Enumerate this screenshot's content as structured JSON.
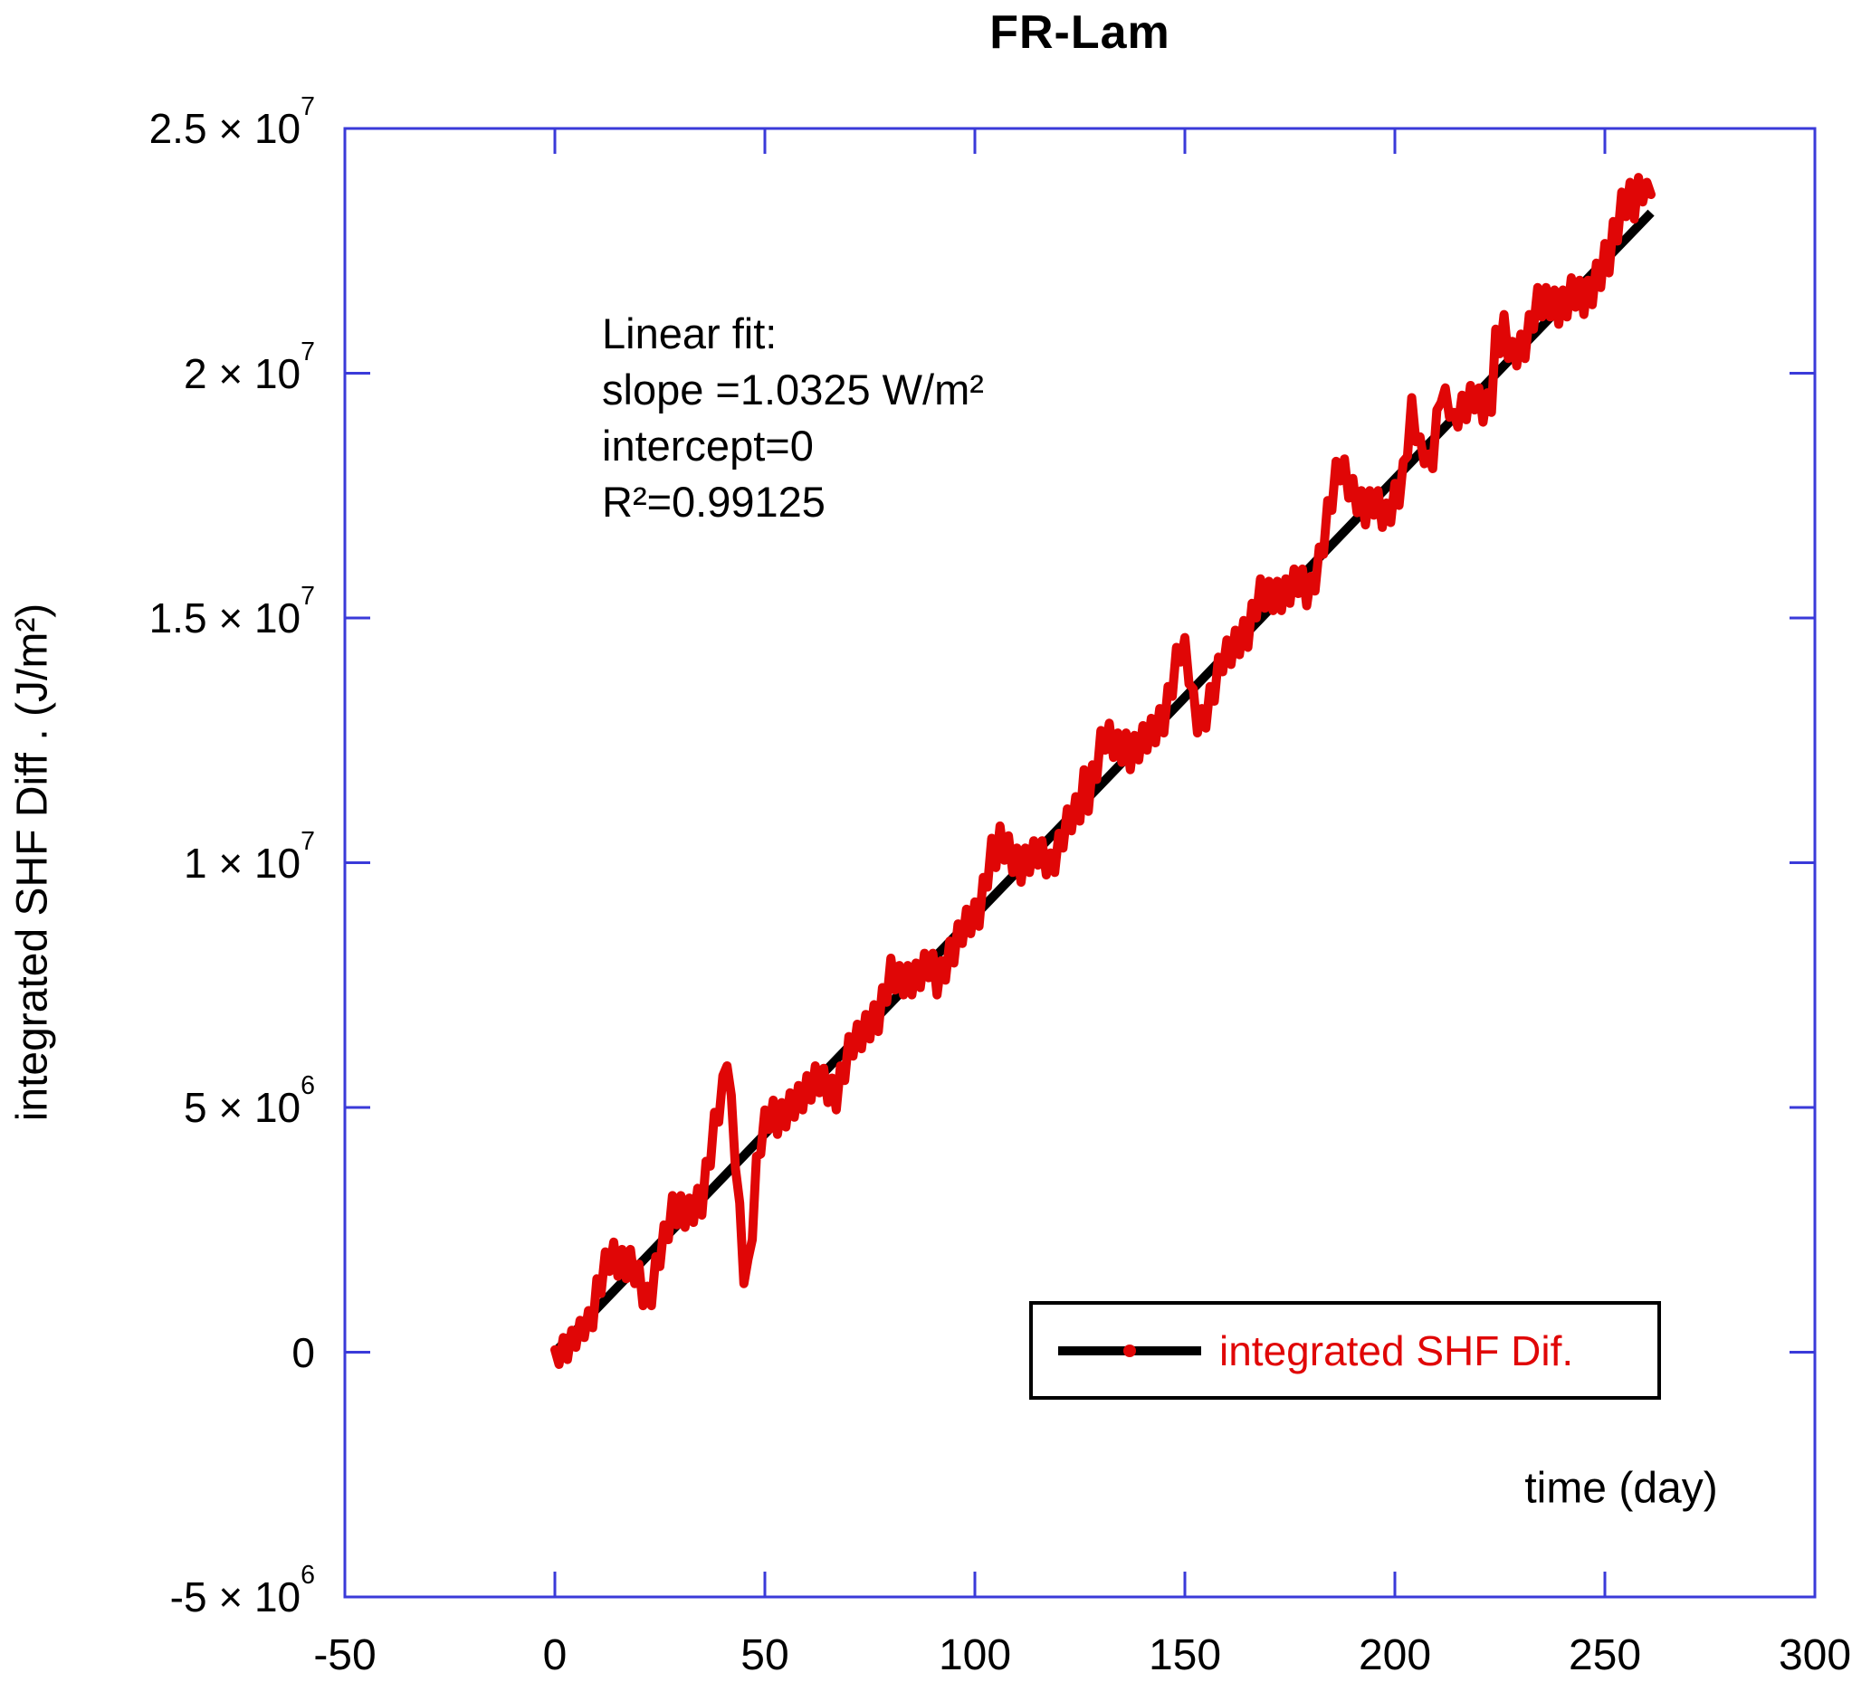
{
  "title": "FR-Lam",
  "axes": {
    "x": {
      "label": "time (day)",
      "min": -50,
      "max": 300,
      "ticks": [
        -50,
        0,
        50,
        100,
        150,
        200,
        250,
        300
      ]
    },
    "y": {
      "label": "integrated SHF Diff . (J/m²)",
      "min": -5000000,
      "max": 25000000,
      "ticks": [
        {
          "value": 25000000,
          "m": "2.5",
          "e": "7"
        },
        {
          "value": 20000000,
          "m": "2",
          "e": "7"
        },
        {
          "value": 15000000,
          "m": "1.5",
          "e": "7"
        },
        {
          "value": 10000000,
          "m": "1",
          "e": "7"
        },
        {
          "value": 5000000,
          "m": "5",
          "e": "6"
        },
        {
          "value": 0,
          "m": "0"
        },
        {
          "value": -5000000,
          "m": "-5",
          "e": "6"
        }
      ]
    }
  },
  "annotation": {
    "lines": [
      "Linear fit:",
      "slope =1.0325 W/m²",
      "intercept=0",
      "R²=0.99125"
    ]
  },
  "legend": {
    "label": "integrated SHF Dif."
  },
  "colors": {
    "series": "#e00606",
    "fit": "#000000",
    "frame": "#3a3ad9",
    "text": "#000000"
  },
  "chart_data": {
    "type": "line",
    "title": "FR-Lam",
    "xlabel": "time (day)",
    "ylabel": "integrated SHF Diff . (J/m²)",
    "xlim": [
      -50,
      300
    ],
    "ylim": [
      -5000000,
      25000000
    ],
    "grid": false,
    "legend_position": "lower-right-inside",
    "series": [
      {
        "name": "integrated SHF Dif.",
        "color": "#e00606",
        "unit": "J/m²",
        "x_start_day": 0,
        "x_step_days": 1,
        "y_values_scale": 1000000,
        "values_e6": [
          0.05,
          -0.25,
          0.3,
          -0.15,
          0.45,
          0.1,
          0.65,
          0.3,
          0.85,
          0.5,
          1.5,
          1.2,
          2.05,
          1.65,
          2.25,
          1.55,
          2.1,
          1.5,
          2.1,
          1.4,
          1.8,
          0.95,
          1.35,
          0.95,
          1.95,
          1.75,
          2.6,
          2.3,
          3.2,
          2.6,
          3.2,
          2.55,
          3.15,
          2.65,
          3.35,
          2.8,
          3.9,
          3.8,
          4.9,
          4.7,
          5.65,
          5.85,
          5.25,
          3.75,
          3.05,
          1.4,
          1.9,
          2.3,
          4.0,
          4.05,
          4.95,
          4.55,
          5.15,
          4.45,
          5.1,
          4.6,
          5.3,
          4.8,
          5.45,
          4.95,
          5.65,
          5.15,
          5.85,
          5.3,
          5.8,
          5.1,
          5.6,
          4.95,
          5.85,
          5.55,
          6.45,
          6.05,
          6.7,
          6.2,
          6.9,
          6.4,
          7.1,
          6.55,
          7.45,
          7.15,
          8.05,
          7.4,
          7.9,
          7.3,
          7.9,
          7.3,
          7.95,
          7.45,
          8.15,
          7.65,
          8.15,
          7.3,
          8.0,
          7.6,
          8.4,
          7.95,
          8.75,
          8.35,
          9.05,
          8.55,
          9.2,
          8.7,
          9.7,
          9.5,
          10.5,
          9.9,
          10.75,
          10.05,
          10.55,
          9.8,
          10.3,
          9.6,
          10.3,
          9.8,
          10.45,
          9.95,
          10.45,
          9.75,
          10.2,
          9.8,
          10.6,
          10.3,
          11.1,
          10.65,
          11.35,
          10.85,
          11.9,
          11.05,
          12.0,
          11.7,
          12.7,
          12.3,
          12.85,
          12.15,
          12.65,
          12.05,
          12.65,
          11.9,
          12.6,
          12.1,
          12.8,
          12.3,
          12.95,
          12.45,
          13.15,
          12.65,
          13.6,
          13.4,
          14.4,
          14.1,
          14.6,
          13.65,
          13.55,
          12.65,
          13.15,
          12.75,
          13.6,
          13.3,
          14.2,
          13.9,
          14.55,
          14.05,
          14.75,
          14.25,
          14.95,
          14.4,
          15.3,
          15.0,
          15.8,
          15.2,
          15.75,
          15.15,
          15.75,
          15.15,
          15.8,
          15.3,
          16.0,
          15.5,
          16.0,
          15.25,
          15.85,
          15.55,
          16.45,
          16.3,
          17.4,
          17.2,
          18.2,
          17.8,
          18.25,
          17.45,
          17.85,
          17.15,
          17.6,
          16.9,
          17.6,
          17.1,
          17.6,
          16.85,
          17.35,
          16.95,
          17.75,
          17.3,
          18.2,
          18.3,
          19.5,
          18.6,
          18.7,
          18.15,
          18.35,
          18.05,
          19.25,
          19.4,
          19.7,
          19.1,
          19.2,
          18.9,
          19.55,
          19.05,
          19.75,
          19.25,
          19.7,
          19.0,
          19.6,
          19.2,
          20.9,
          20.4,
          21.2,
          20.3,
          20.65,
          20.15,
          20.8,
          20.3,
          21.2,
          20.9,
          21.75,
          21.15,
          21.75,
          21.15,
          21.7,
          21.0,
          21.7,
          21.15,
          21.95,
          21.35,
          21.9,
          21.2,
          21.9,
          21.4,
          22.25,
          21.75,
          22.65,
          22.05,
          23.1,
          22.7,
          23.7,
          23.2,
          23.9,
          23.15,
          24.0,
          23.5,
          23.9,
          23.65
        ]
      },
      {
        "name": "linear fit",
        "color": "#000000",
        "slope_W_per_m2": 1.0325,
        "slope_e6_per_day": 0.0892,
        "intercept": 0,
        "r2": 0.99125,
        "x": [
          0,
          261
        ],
        "y_e6": [
          0,
          23.28
        ]
      }
    ]
  }
}
